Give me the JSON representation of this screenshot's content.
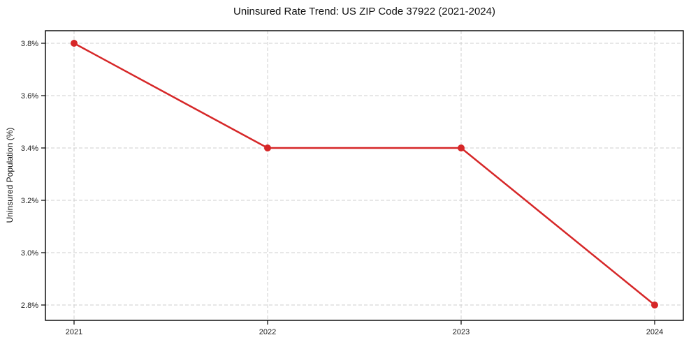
{
  "chart_data": {
    "type": "line",
    "title": "Uninsured Rate Trend: US ZIP Code 37922 (2021-2024)",
    "xlabel": "",
    "ylabel": "Uninsured Population (%)",
    "x": [
      2021,
      2022,
      2023,
      2024
    ],
    "values": [
      3.8,
      3.4,
      3.4,
      2.8
    ],
    "x_tick_labels": [
      "2021",
      "2022",
      "2023",
      "2024"
    ],
    "y_ticks": [
      2.8,
      3.0,
      3.2,
      3.4,
      3.6,
      3.8
    ],
    "y_tick_labels": [
      "2.8%",
      "3.0%",
      "3.2%",
      "3.4%",
      "3.6%",
      "3.8%"
    ],
    "ylim": [
      2.74,
      3.85
    ],
    "grid": true,
    "legend": "none",
    "line_color": "#d62728",
    "grid_color": "#cfcfcf",
    "spine_color": "#000000",
    "text_color": "#1a1a1a"
  }
}
